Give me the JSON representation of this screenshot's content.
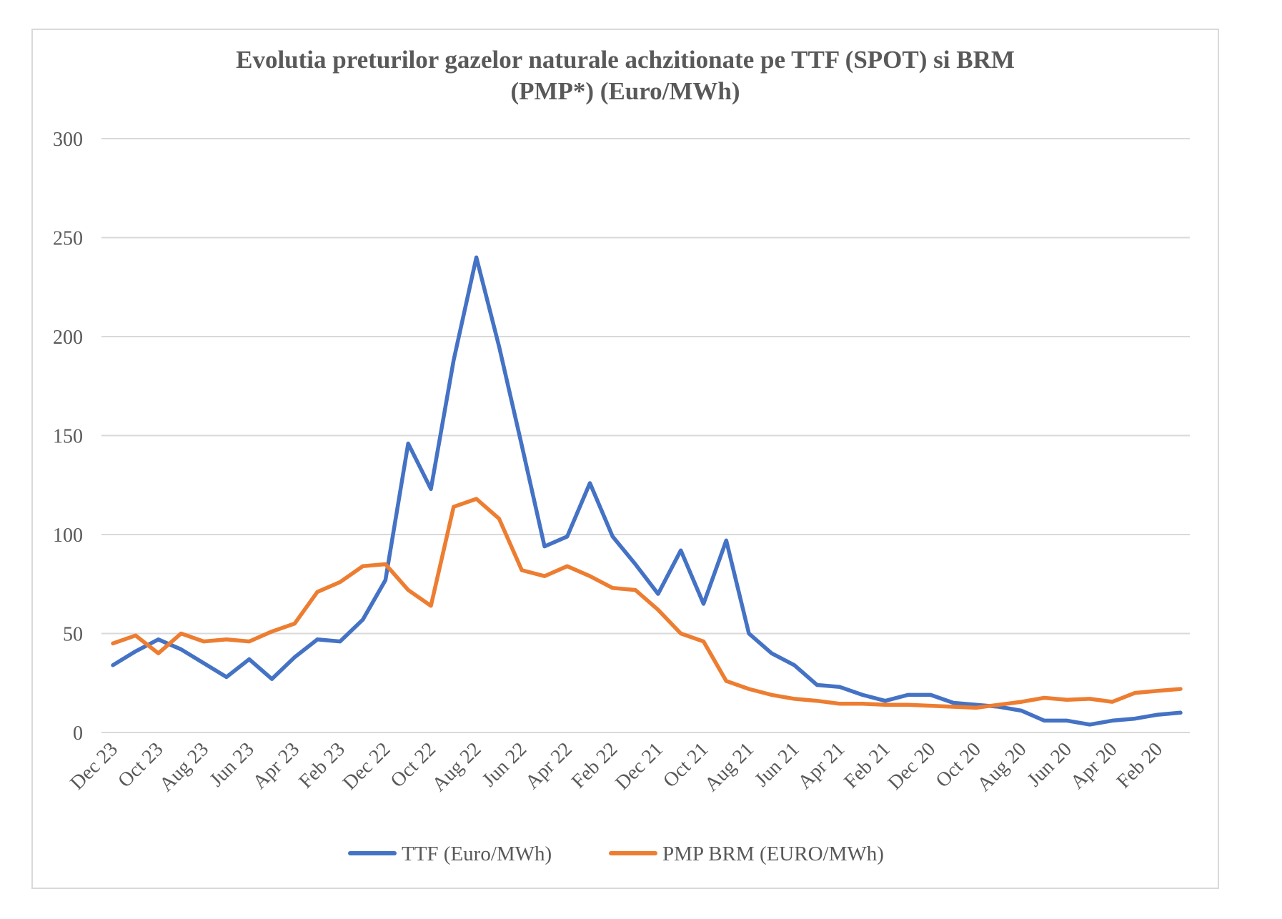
{
  "chart_data": {
    "type": "line",
    "title_line1": "Evolutia preturilor gazelor naturale achzitionate pe TTF (SPOT) si BRM",
    "title_line2": "(PMP*) (Euro/MWh)",
    "x": [
      "Dec 23",
      "Nov 23",
      "Oct 23",
      "Sep 23",
      "Aug 23",
      "Jul 23",
      "Jun 23",
      "May 23",
      "Apr 23",
      "Mar 23",
      "Feb 23",
      "Jan 23",
      "Dec 22",
      "Nov 22",
      "Oct 22",
      "Sep 22",
      "Aug 22",
      "Jul 22",
      "Jun 22",
      "May 22",
      "Apr 22",
      "Mar 22",
      "Feb 22",
      "Jan 22",
      "Dec 21",
      "Nov 21",
      "Oct 21",
      "Sep 21",
      "Aug 21",
      "Jul 21",
      "Jun 21",
      "May 21",
      "Apr 21",
      "Mar 21",
      "Feb 21",
      "Jan 21",
      "Dec 20",
      "Nov 20",
      "Oct 20",
      "Sep 20",
      "Aug 20",
      "Jul 20",
      "Jun 20",
      "May 20",
      "Apr 20",
      "Mar 20",
      "Feb 20",
      "Jan 20"
    ],
    "x_tick_labels": [
      "Dec 23",
      "Oct 23",
      "Aug 23",
      "Jun 23",
      "Apr 23",
      "Feb 23",
      "Dec 22",
      "Oct 22",
      "Aug 22",
      "Jun 22",
      "Apr 22",
      "Feb 22",
      "Dec 21",
      "Oct 21",
      "Aug 21",
      "Jun 21",
      "Apr 21",
      "Feb 21",
      "Dec 20",
      "Oct 20",
      "Aug 20",
      "Jun 20",
      "Apr 20",
      "Feb 20"
    ],
    "y_ticks": [
      0,
      50,
      100,
      150,
      200,
      250,
      300
    ],
    "ylim": [
      0,
      300
    ],
    "grid": true,
    "legend_position": "bottom",
    "series": [
      {
        "name": "TTF (Euro/MWh)",
        "color": "#4472c4",
        "values": [
          34,
          41,
          47,
          42,
          35,
          28,
          37,
          27,
          38,
          47,
          46,
          57,
          77,
          146,
          123,
          188,
          240,
          195,
          145,
          94,
          99,
          126,
          99,
          85,
          70,
          92,
          65,
          97,
          50,
          40,
          34,
          24,
          23,
          19,
          16,
          19,
          19,
          15,
          14,
          13,
          11,
          6,
          6,
          4,
          6,
          7,
          9,
          10
        ]
      },
      {
        "name": "PMP BRM (EURO/MWh)",
        "color": "#ed7d31",
        "values": [
          45,
          49,
          40,
          50,
          46,
          47,
          46,
          51,
          55,
          71,
          76,
          84,
          85,
          72,
          64,
          114,
          118,
          108,
          82,
          79,
          84,
          79,
          73,
          72,
          62,
          50,
          46,
          26,
          22,
          19,
          17,
          16,
          14.5,
          14.5,
          14,
          14,
          13.5,
          13,
          12.5,
          14,
          15.5,
          17.5,
          16.5,
          17,
          15.5,
          20,
          21,
          22
        ]
      }
    ]
  }
}
